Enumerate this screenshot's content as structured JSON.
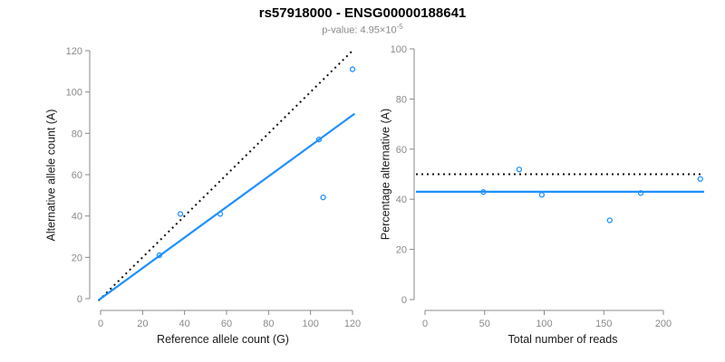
{
  "header": {
    "title": "rs57918000 - ENSG00000188641",
    "subtitle_base": "p-value: 4.95×10",
    "subtitle_exponent": "-5"
  },
  "colors": {
    "accent_blue": "#1E90FF",
    "reference_black": "#111111",
    "axis_gray": "#888888",
    "tick_label_gray": "#8A8A8A"
  },
  "chart_data": [
    {
      "type": "scatter",
      "panel": "left",
      "xlabel": "Reference allele count (G)",
      "ylabel": "Alternative allele count (A)",
      "xlim": [
        0,
        120
      ],
      "ylim": [
        0,
        120
      ],
      "xticks": [
        0,
        20,
        40,
        60,
        80,
        100,
        120
      ],
      "yticks": [
        0,
        20,
        40,
        60,
        80,
        100,
        120
      ],
      "grid": false,
      "legend": "none",
      "points": [
        [
          28,
          21
        ],
        [
          38,
          41
        ],
        [
          57,
          41
        ],
        [
          104,
          77
        ],
        [
          106,
          49
        ],
        [
          120,
          111
        ]
      ],
      "lines": [
        {
          "name": "identity line y=x",
          "style": "dotted",
          "color": "#111111",
          "x1": -1,
          "y1": -1,
          "x2": 120,
          "y2": 120
        },
        {
          "name": "regression line slope 0.74",
          "style": "solid",
          "color": "#1E90FF",
          "x1": -1,
          "y1": -0.74,
          "x2": 121,
          "y2": 89.5
        }
      ]
    },
    {
      "type": "scatter",
      "panel": "right",
      "xlabel": "Total number of reads",
      "ylabel": "Percentage alternative (A)",
      "xlim": [
        0,
        235
      ],
      "ylim": [
        0,
        100
      ],
      "xticks": [
        0,
        50,
        100,
        150,
        200
      ],
      "yticks": [
        0,
        20,
        40,
        60,
        80,
        100
      ],
      "grid": false,
      "legend": "none",
      "points": [
        [
          49,
          42.9
        ],
        [
          79,
          51.9
        ],
        [
          98,
          41.8
        ],
        [
          155,
          31.6
        ],
        [
          181,
          42.5
        ],
        [
          231,
          48.1
        ]
      ],
      "lines": [
        {
          "name": "expected 50 percent",
          "style": "dotted",
          "color": "#111111",
          "hline": 50
        },
        {
          "name": "observed mean 42.9 percent",
          "style": "solid",
          "color": "#1E90FF",
          "hline": 43
        }
      ]
    }
  ]
}
